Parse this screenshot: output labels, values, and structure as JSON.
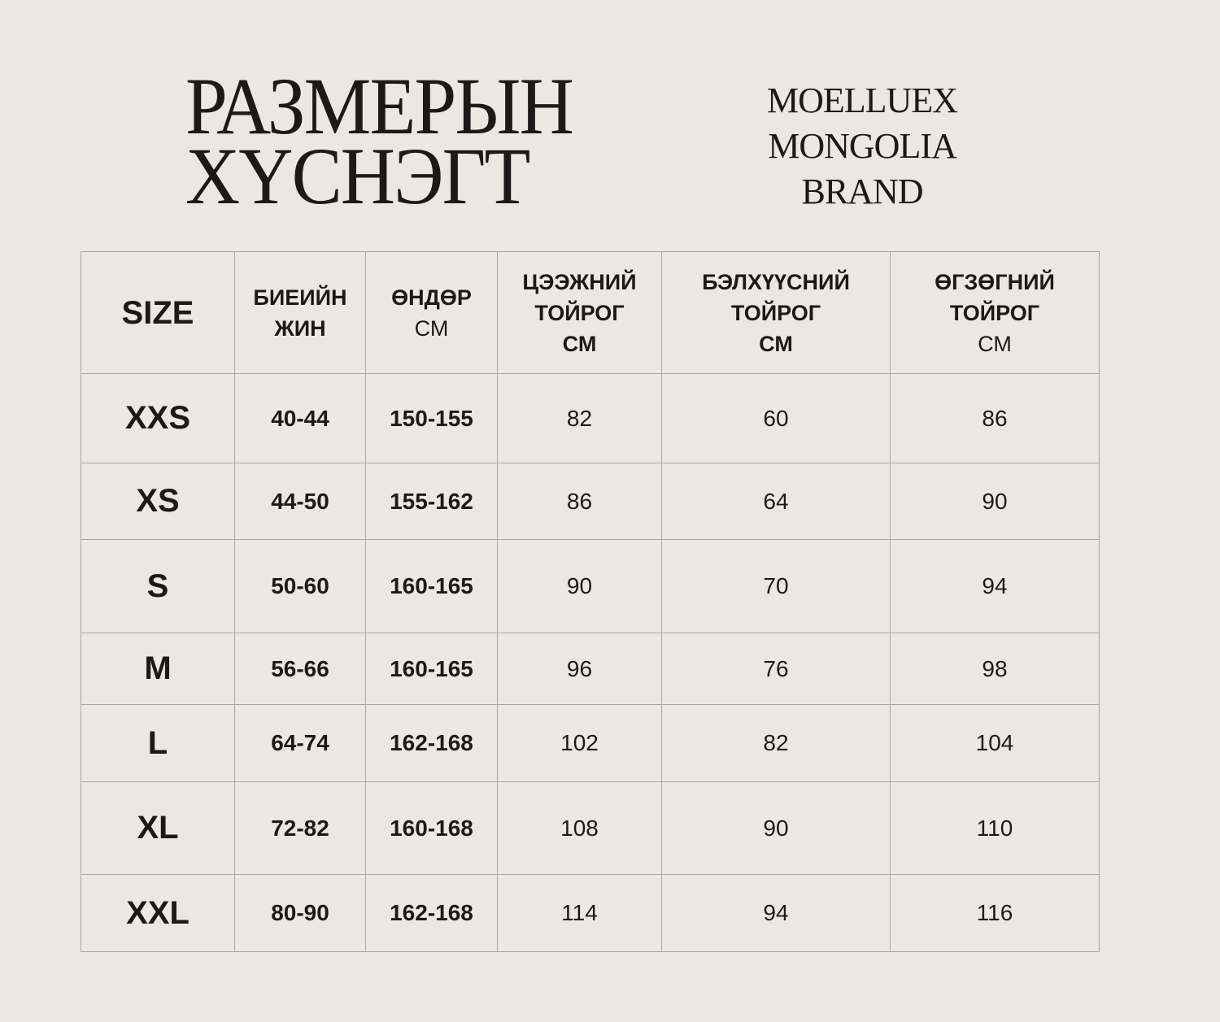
{
  "title": {
    "line1": "РАЗМЕРЫН",
    "line2": "ХҮСНЭГТ"
  },
  "brand": {
    "line1": "MOELLUEX",
    "line2": "MONGOLIA",
    "line3": "BRAND"
  },
  "headers": [
    {
      "l1": "SIZE"
    },
    {
      "l1": "БИЕИЙН",
      "l2": "ЖИН"
    },
    {
      "l1": "ӨНДӨР",
      "unit": "СМ"
    },
    {
      "l1": "ЦЭЭЖНИЙ",
      "l2": "ТОЙРОГ",
      "l3": "СМ"
    },
    {
      "l1": "БЭЛХҮҮСНИЙ",
      "l2": "ТОЙРОГ",
      "l3": "СМ"
    },
    {
      "l1": "ӨГЗӨГНИЙ",
      "l2": "ТОЙРОГ",
      "unit": "СМ"
    }
  ],
  "rows": [
    [
      "XXS",
      "40-44",
      "150-155",
      "82",
      "60",
      "86"
    ],
    [
      "XS",
      "44-50",
      "155-162",
      "86",
      "64",
      "90"
    ],
    [
      "S",
      "50-60",
      "160-165",
      "90",
      "70",
      "94"
    ],
    [
      "M",
      "56-66",
      "160-165",
      "96",
      "76",
      "98"
    ],
    [
      "L",
      "64-74",
      "162-168",
      "102",
      "82",
      "104"
    ],
    [
      "XL",
      "72-82",
      "160-168",
      "108",
      "90",
      "110"
    ],
    [
      "XXL",
      "80-90",
      "162-168",
      "114",
      "94",
      "116"
    ]
  ]
}
